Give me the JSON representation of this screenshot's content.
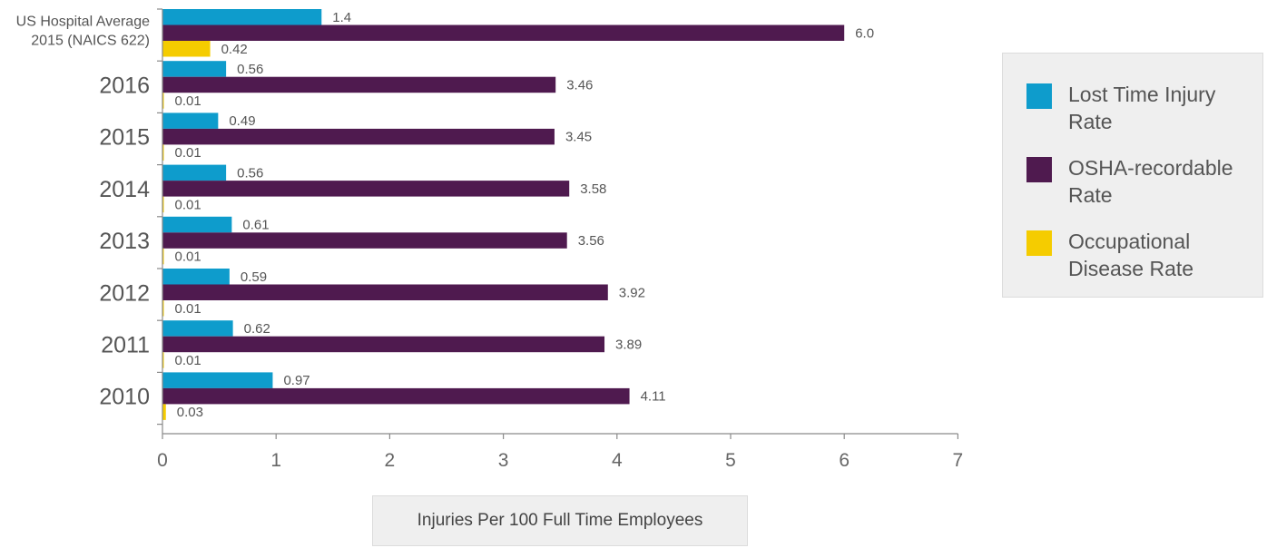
{
  "chart_data": {
    "type": "bar",
    "orientation": "horizontal",
    "title": "",
    "xlabel": "Injuries Per 100 Full Time Employees",
    "ylabel": "",
    "xlim": [
      0,
      7
    ],
    "x_ticks": [
      "0",
      "1",
      "2",
      "3",
      "4",
      "5",
      "6",
      "7"
    ],
    "categories": [
      [
        "US Hospital Average",
        "2015 (NAICS 622)"
      ],
      [
        "2016"
      ],
      [
        "2015"
      ],
      [
        "2014"
      ],
      [
        "2013"
      ],
      [
        "2012"
      ],
      [
        "2011"
      ],
      [
        "2010"
      ]
    ],
    "series": [
      {
        "name": "Lost Time Injury Rate",
        "legend_lines": [
          "Lost Time Injury",
          "Rate"
        ],
        "color": "#0e9ccc",
        "values": [
          1.4,
          0.56,
          0.49,
          0.56,
          0.61,
          0.59,
          0.62,
          0.97
        ],
        "labels": [
          "1.4",
          "0.56",
          "0.49",
          "0.56",
          "0.61",
          "0.59",
          "0.62",
          "0.97"
        ]
      },
      {
        "name": "OSHA-recordable Rate",
        "legend_lines": [
          "OSHA-recordable",
          "Rate"
        ],
        "color": "#4f1a4f",
        "values": [
          6.0,
          3.46,
          3.45,
          3.58,
          3.56,
          3.92,
          3.89,
          4.11
        ],
        "labels": [
          "6.0",
          "3.46",
          "3.45",
          "3.58",
          "3.56",
          "3.92",
          "3.89",
          "4.11"
        ]
      },
      {
        "name": "Occupational Disease Rate",
        "legend_lines": [
          "Occupational",
          "Disease Rate"
        ],
        "color": "#f5cc00",
        "values": [
          0.42,
          0.01,
          0.01,
          0.01,
          0.01,
          0.01,
          0.01,
          0.03
        ],
        "labels": [
          "0.42",
          "0.01",
          "0.01",
          "0.01",
          "0.01",
          "0.01",
          "0.01",
          "0.03"
        ]
      }
    ],
    "legend_position": "right",
    "grid": false
  }
}
